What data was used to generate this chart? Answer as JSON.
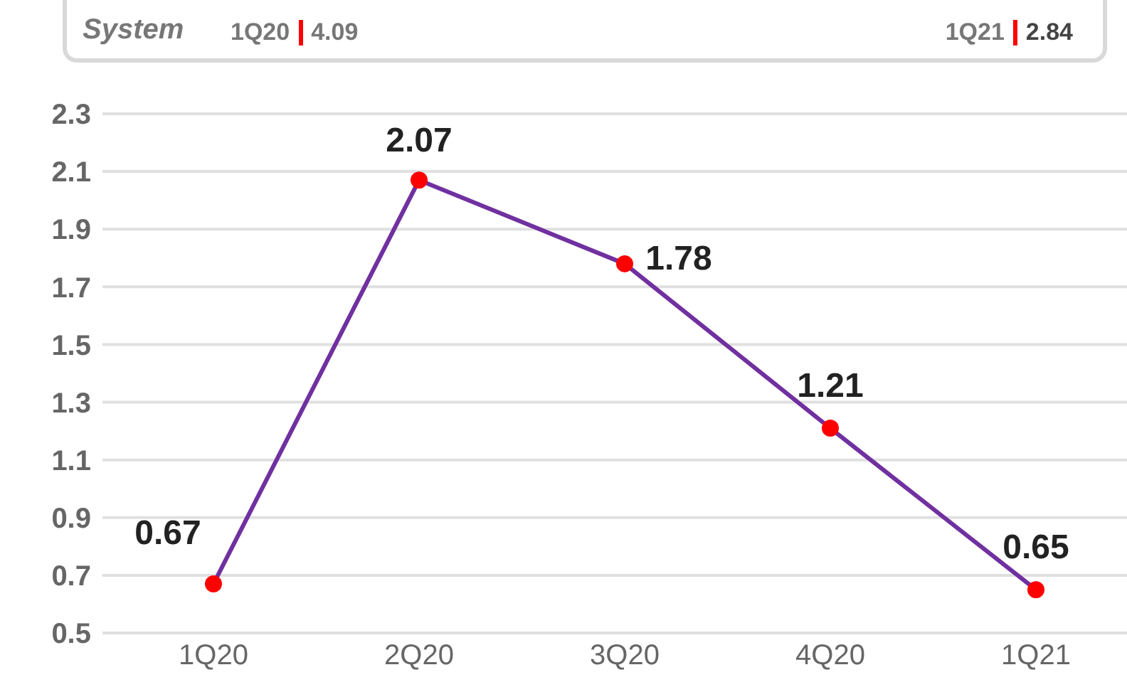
{
  "chart_data": {
    "type": "line",
    "annotations": [
      "System",
      "1Q20",
      "4.09",
      "1Q21",
      "2.84"
    ],
    "categories": [
      "1Q20",
      "2Q20",
      "3Q20",
      "4Q20",
      "1Q21"
    ],
    "series": [
      {
        "color": "#7030a0",
        "values": [
          0.67,
          2.07,
          1.78,
          1.21,
          0.65
        ]
      }
    ],
    "marker": "circle",
    "line_style": "solid",
    "data_labels": true,
    "grid": "y",
    "legend": false,
    "ylim": [
      0.5,
      2.3
    ],
    "yticks": [
      0.5,
      0.7,
      0.9,
      1.1,
      1.3,
      1.5,
      1.7,
      1.9,
      2.1,
      2.3
    ]
  }
}
